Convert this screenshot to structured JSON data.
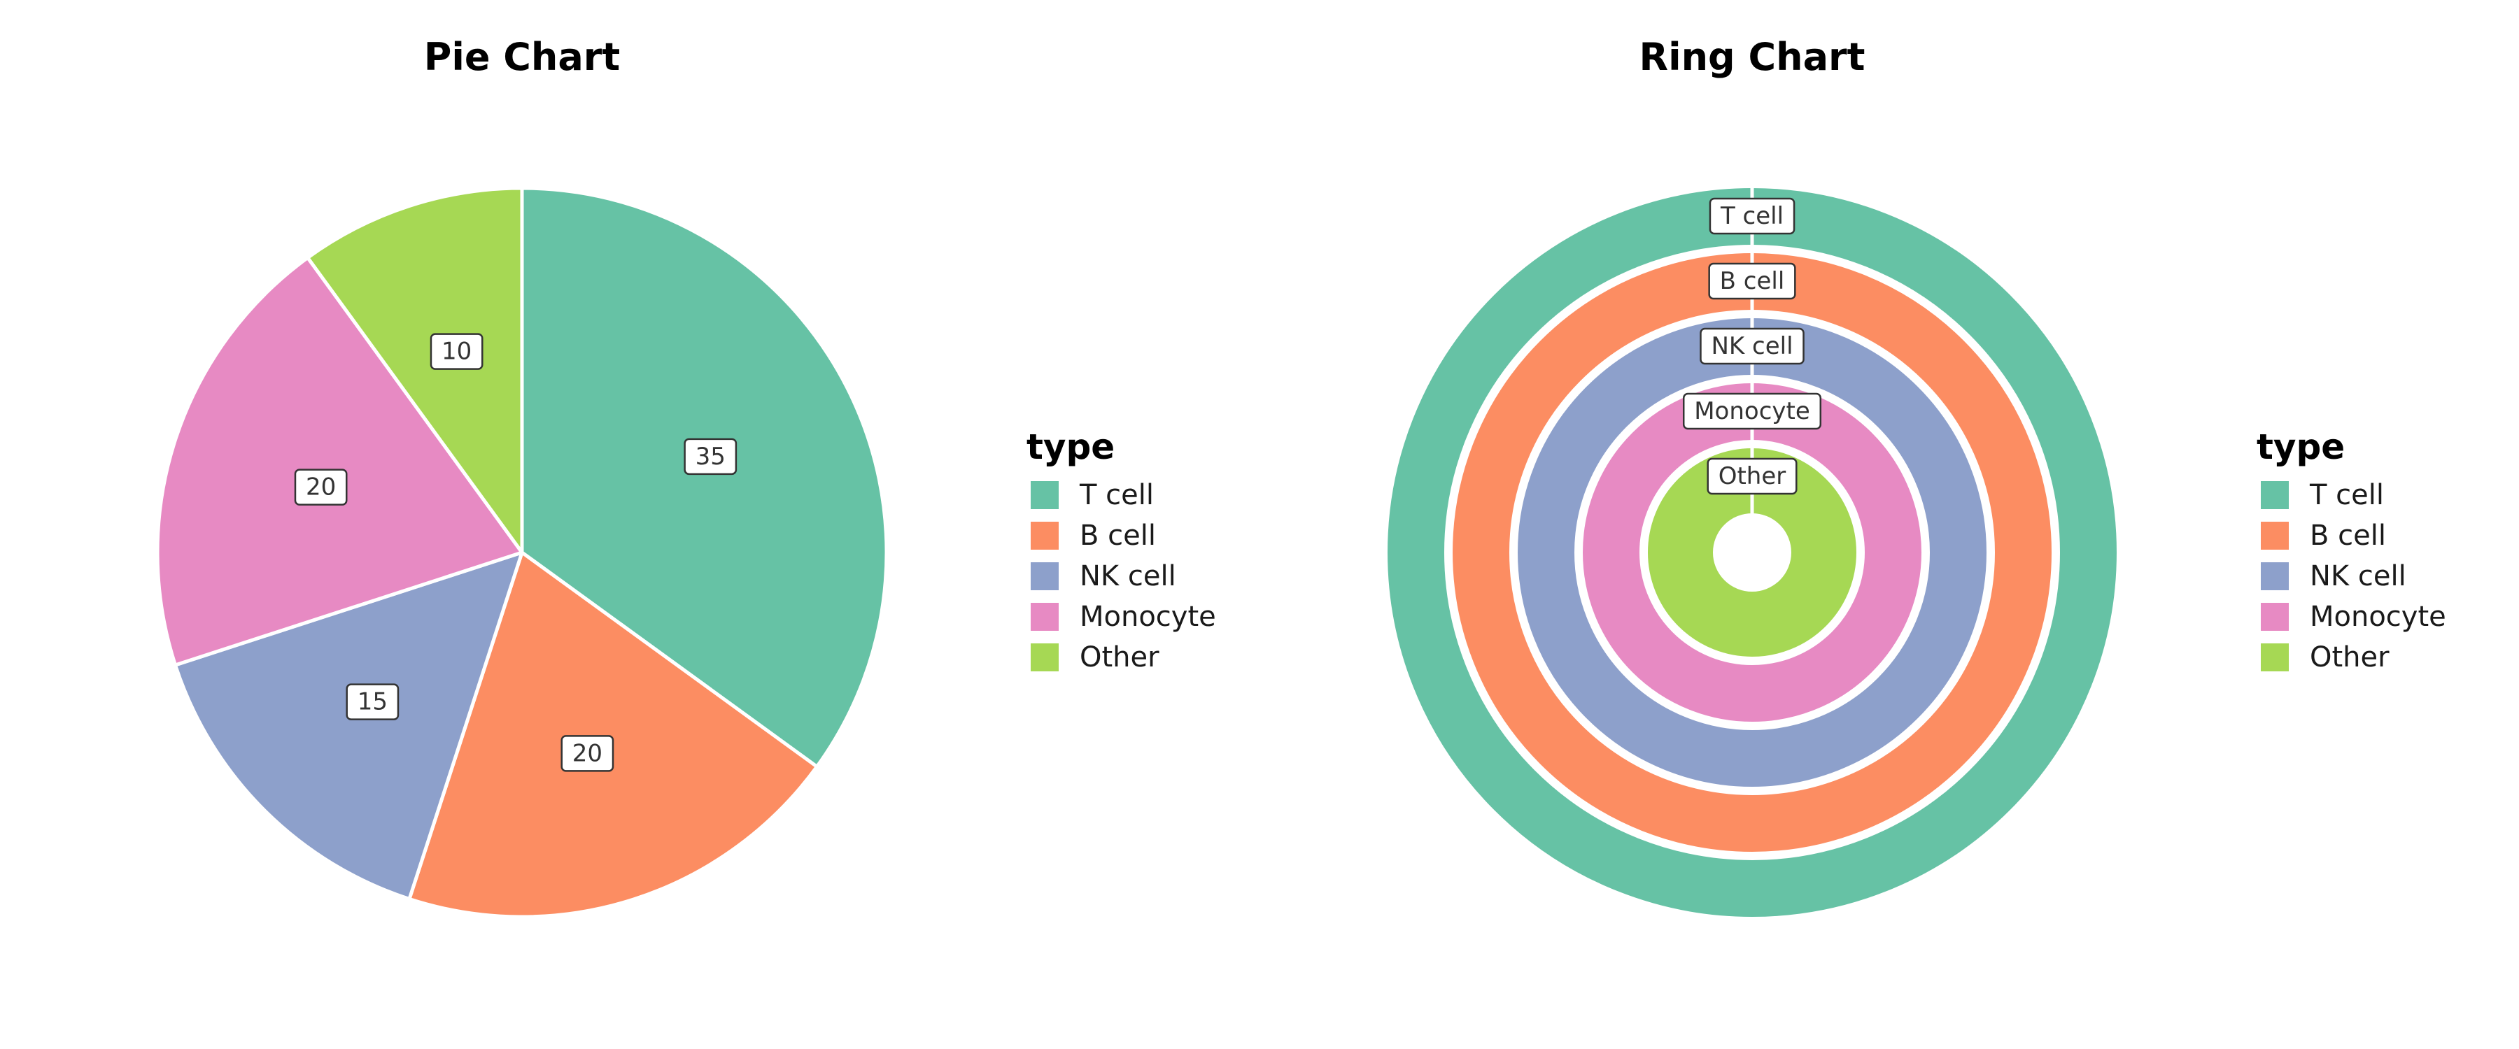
{
  "chart_data": [
    {
      "type": "pie",
      "title": "Pie Chart",
      "legend_title": "type",
      "legend_position": "right",
      "categories": [
        "T cell",
        "B cell",
        "NK cell",
        "Monocyte",
        "Other"
      ],
      "values": [
        35,
        20,
        15,
        20,
        10
      ],
      "colors": [
        "#66C2A5",
        "#FC8D62",
        "#8DA0CB",
        "#E78AC3",
        "#A6D854"
      ],
      "direction": "clockwise from top"
    },
    {
      "type": "ring",
      "title": "Ring Chart",
      "legend_title": "type",
      "legend_position": "right",
      "categories": [
        "T cell",
        "B cell",
        "NK cell",
        "Monocyte",
        "Other"
      ],
      "colors": [
        "#66C2A5",
        "#FC8D62",
        "#8DA0CB",
        "#E78AC3",
        "#A6D854"
      ],
      "ring_order": "outermost to innermost"
    }
  ]
}
